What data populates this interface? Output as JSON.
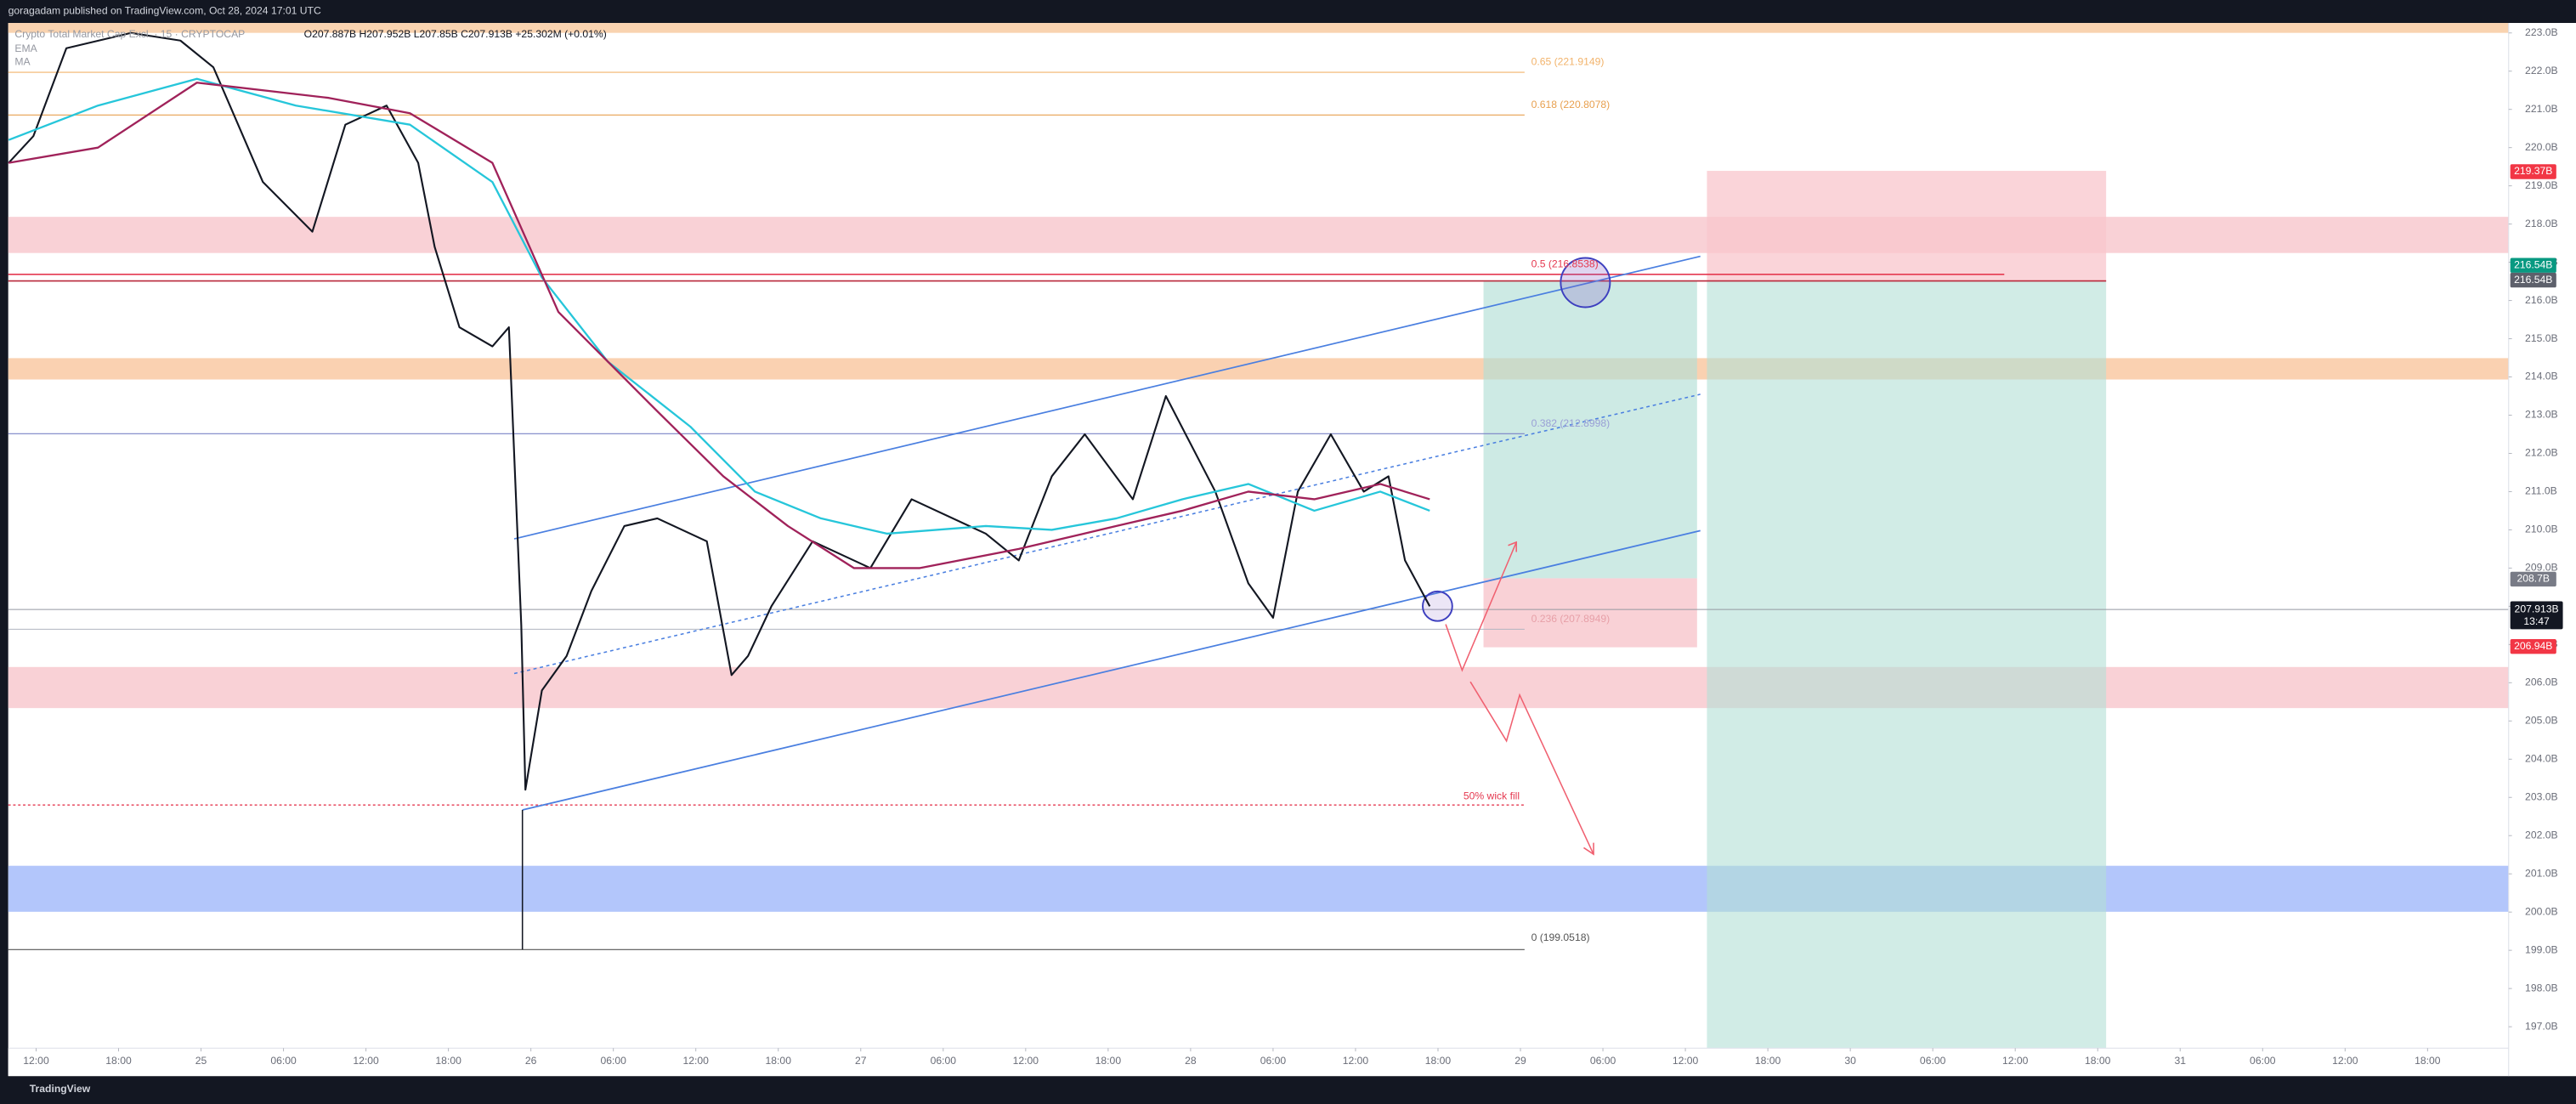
{
  "header": "goragadam published on TradingView.com, Oct 28, 2024 17:01 UTC",
  "legend": {
    "symbol": "Crypto Total Market Cap Excl. · 15 · CRYPTOCAP",
    "ohlc": "O207.887B H207.952B L207.85B C207.913B +25.302M (+0.01%)",
    "ema": "EMA",
    "ma": "MA"
  },
  "drawings": {
    "fib_065": "0.65 (221.9149)",
    "fib_0618": "0.618 (220.8078)",
    "fib_05": "0.5 (216.8538)",
    "fib_0382": "0.382 (212.8998)",
    "fib_0236": "0.236 (207.8949)",
    "fib_0": "0 (199.0518)",
    "wick_note": "50% wick fill"
  },
  "price_tags": {
    "stop": "219.37B",
    "entry_green": "216.54B",
    "entry_gray": "216.54B",
    "level": "208.7B",
    "last": "207.913B",
    "countdown": "13:47",
    "target": "206.94B"
  },
  "footer": "TradingView",
  "chart_data": {
    "type": "line",
    "xlim": [
      -2.03,
      179.9
    ],
    "xticks": [
      {
        "value": 0,
        "label": "12:00"
      },
      {
        "value": 6,
        "label": "18:00"
      },
      {
        "value": 12,
        "label": "25"
      },
      {
        "value": 18,
        "label": "06:00"
      },
      {
        "value": 24,
        "label": "12:00"
      },
      {
        "value": 30,
        "label": "18:00"
      },
      {
        "value": 36,
        "label": "26"
      },
      {
        "value": 42,
        "label": "06:00"
      },
      {
        "value": 48,
        "label": "12:00"
      },
      {
        "value": 54,
        "label": "18:00"
      },
      {
        "value": 60,
        "label": "27"
      },
      {
        "value": 66,
        "label": "06:00"
      },
      {
        "value": 72,
        "label": "12:00"
      },
      {
        "value": 78,
        "label": "18:00"
      },
      {
        "value": 84,
        "label": "28"
      },
      {
        "value": 90,
        "label": "06:00"
      },
      {
        "value": 96,
        "label": "12:00"
      },
      {
        "value": 102,
        "label": "18:00"
      },
      {
        "value": 108,
        "label": "29"
      },
      {
        "value": 114,
        "label": "06:00"
      },
      {
        "value": 120,
        "label": "12:00"
      },
      {
        "value": 126,
        "label": "18:00"
      },
      {
        "value": 132,
        "label": "30"
      },
      {
        "value": 138,
        "label": "06:00"
      },
      {
        "value": 144,
        "label": "12:00"
      },
      {
        "value": 150,
        "label": "18:00"
      },
      {
        "value": 156,
        "label": "31"
      },
      {
        "value": 162,
        "label": "06:00"
      },
      {
        "value": 168,
        "label": "12:00"
      },
      {
        "value": 174,
        "label": "18:00"
      }
    ],
    "ylim": [
      196.44,
      223.26
    ],
    "yticks": [
      {
        "value": 197,
        "label": "197.0B"
      },
      {
        "value": 198,
        "label": "198.0B"
      },
      {
        "value": 199,
        "label": "199.0B"
      },
      {
        "value": 200,
        "label": "200.0B"
      },
      {
        "value": 201,
        "label": "201.0B"
      },
      {
        "value": 202,
        "label": "202.0B"
      },
      {
        "value": 203,
        "label": "203.0B"
      },
      {
        "value": 204,
        "label": "204.0B"
      },
      {
        "value": 205,
        "label": "205.0B"
      },
      {
        "value": 206,
        "label": "206.0B"
      },
      {
        "value": 207,
        "label": "207.0B"
      },
      {
        "value": 208,
        "label": "208.0B"
      },
      {
        "value": 209,
        "label": "209.0B"
      },
      {
        "value": 210,
        "label": "210.0B"
      },
      {
        "value": 211,
        "label": "211.0B"
      },
      {
        "value": 212,
        "label": "212.0B"
      },
      {
        "value": 213,
        "label": "213.0B"
      },
      {
        "value": 214,
        "label": "214.0B"
      },
      {
        "value": 215,
        "label": "215.0B"
      },
      {
        "value": 216,
        "label": "216.0B"
      },
      {
        "value": 217,
        "label": "217.0B"
      },
      {
        "value": 218,
        "label": "218.0B"
      },
      {
        "value": 219,
        "label": "219.0B"
      },
      {
        "value": 220,
        "label": "220.0B"
      },
      {
        "value": 221,
        "label": "221.0B"
      },
      {
        "value": 222,
        "label": "222.0B"
      },
      {
        "value": 223,
        "label": "223.0B"
      }
    ],
    "series": [
      {
        "color": "#131722",
        "x": [
          -2,
          -0.2,
          2.2,
          6.9,
          10.5,
          12.9,
          16.5,
          20.1,
          22.5,
          25.5,
          27.8,
          29.0,
          30.8,
          33.2,
          34.4,
          35.3,
          35.6,
          36.8,
          38.6,
          40.4,
          42.8,
          45.2,
          48.8,
          50.6,
          51.8,
          53.5,
          56.5,
          60.7,
          63.7,
          69.1,
          71.5,
          73.9,
          76.3,
          79.8,
          82.2,
          85.8,
          88.2,
          90.0,
          91.8,
          94.2,
          96.6,
          98.4,
          99.6,
          100.8,
          101.4
        ],
        "values": [
          219.6,
          220.3,
          222.6,
          223.0,
          222.8,
          222.1,
          219.1,
          217.8,
          220.6,
          221.1,
          219.6,
          217.4,
          215.3,
          214.8,
          215.3,
          207.5,
          203.2,
          205.8,
          206.7,
          208.4,
          210.1,
          210.3,
          209.7,
          206.2,
          206.7,
          208.0,
          209.7,
          209.0,
          210.8,
          209.9,
          209.2,
          211.4,
          212.5,
          210.8,
          213.5,
          211.0,
          208.6,
          207.7,
          211.0,
          212.5,
          211.0,
          211.4,
          209.2,
          208.4,
          208.0
        ]
      },
      {
        "name": "EMA",
        "color": "#26c6da",
        "x": [
          -2,
          4.5,
          11.7,
          18.9,
          27.2,
          33.2,
          36.8,
          41.6,
          47.6,
          52.3,
          57.1,
          61.9,
          69.1,
          73.9,
          78.6,
          83.4,
          88.2,
          93.0,
          97.8,
          101.4
        ],
        "values": [
          220.2,
          221.1,
          221.8,
          221.1,
          220.6,
          219.1,
          216.6,
          214.4,
          212.7,
          211.0,
          210.3,
          209.9,
          210.1,
          210.0,
          210.3,
          210.8,
          211.2,
          210.5,
          211.0,
          210.5
        ]
      },
      {
        "name": "MA",
        "color": "#a0225a",
        "x": [
          -2,
          4.5,
          11.7,
          21.3,
          27.2,
          33.2,
          38.0,
          45.2,
          50.0,
          54.7,
          59.5,
          64.3,
          71.5,
          78.6,
          83.4,
          88.2,
          93.0,
          97.8,
          101.4
        ],
        "values": [
          219.6,
          220.0,
          221.7,
          221.3,
          220.9,
          219.6,
          215.7,
          213.1,
          211.4,
          210.1,
          209.0,
          209.0,
          209.5,
          210.1,
          210.5,
          211.0,
          210.8,
          211.2,
          210.8
        ]
      }
    ]
  }
}
